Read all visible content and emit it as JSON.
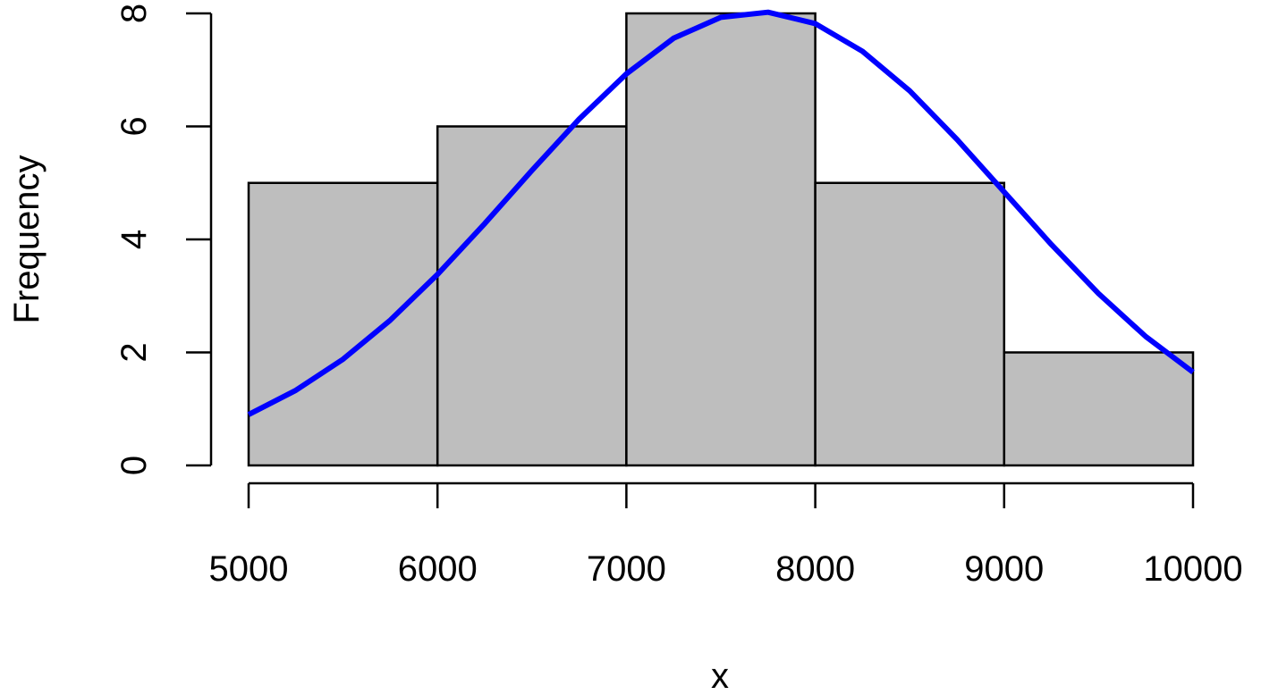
{
  "chart_data": {
    "type": "histogram",
    "x_label": "x",
    "y_label": "Frequency",
    "bins": [
      5000,
      6000,
      7000,
      8000,
      9000,
      10000
    ],
    "values": [
      5,
      6,
      8,
      5,
      2
    ],
    "color": "#bebebe",
    "xlim": [
      5000,
      10000
    ],
    "xticks": [
      5000,
      6000,
      7000,
      8000,
      9000,
      10000
    ],
    "ylim": [
      0,
      8
    ],
    "yticks": [
      0,
      2,
      4,
      6,
      8
    ],
    "curve": {
      "color": "#0000ff",
      "x": [
        5000,
        5250,
        5500,
        5750,
        6000,
        6250,
        6500,
        6750,
        7000,
        7250,
        7500,
        7750,
        8000,
        8250,
        8500,
        8750,
        9000,
        9250,
        9500,
        9750,
        10000
      ],
      "values": [
        0.9,
        1.33,
        1.88,
        2.57,
        3.38,
        4.28,
        5.22,
        6.13,
        6.93,
        7.56,
        7.93,
        8.02,
        7.82,
        7.33,
        6.63,
        5.77,
        4.84,
        3.91,
        3.04,
        2.28,
        1.65
      ]
    }
  }
}
